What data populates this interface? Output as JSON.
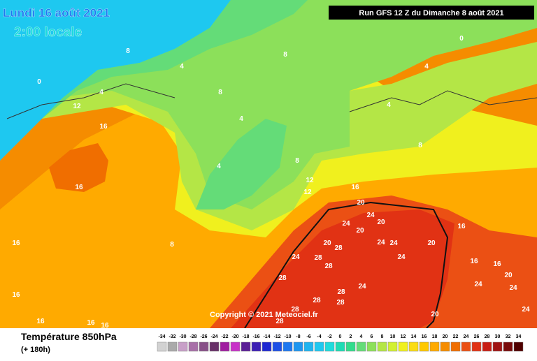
{
  "header": {
    "date": "Lundi 16 août 2021",
    "time": "2:00 locale",
    "run": "Run GFS 12 Z du Dimanche 8 août 2021"
  },
  "map": {
    "copyright": "Copyright © 2021 Meteociel.fr",
    "contour_labels": [
      "8",
      "4",
      "8",
      "0",
      "8",
      "4",
      "12",
      "16",
      "16",
      "4",
      "8",
      "12",
      "12",
      "16",
      "20",
      "24",
      "24",
      "20",
      "20",
      "20",
      "28",
      "24",
      "24",
      "20",
      "24",
      "28",
      "28",
      "24",
      "28",
      "24",
      "28",
      "28",
      "28",
      "28",
      "20",
      "28",
      "16",
      "16",
      "16",
      "20",
      "24",
      "24",
      "24",
      "16",
      "16",
      "16",
      "16",
      "16",
      "8",
      "4",
      "8",
      "4",
      "0",
      "4"
    ]
  },
  "legend": {
    "title": "Température 850hPa",
    "subtitle": "(+ 180h)",
    "scale": [
      {
        "value": -34,
        "color": "#d2d2d2"
      },
      {
        "value": -32,
        "color": "#aaaaaa"
      },
      {
        "value": -30,
        "color": "#c8a0c8"
      },
      {
        "value": -28,
        "color": "#a870a8"
      },
      {
        "value": -26,
        "color": "#885088"
      },
      {
        "value": -24,
        "color": "#683068"
      },
      {
        "value": -22,
        "color": "#a01ea0"
      },
      {
        "value": -20,
        "color": "#c832c8"
      },
      {
        "value": -18,
        "color": "#5a1e96"
      },
      {
        "value": -16,
        "color": "#3c1eb4"
      },
      {
        "value": -14,
        "color": "#1e28d2"
      },
      {
        "value": -12,
        "color": "#1e50e6"
      },
      {
        "value": -10,
        "color": "#1e78f0"
      },
      {
        "value": -8,
        "color": "#1e96f0"
      },
      {
        "value": -6,
        "color": "#1eb4f0"
      },
      {
        "value": -4,
        "color": "#1ec8f0"
      },
      {
        "value": -2,
        "color": "#1edcdc"
      },
      {
        "value": 0,
        "color": "#1edcb4"
      },
      {
        "value": 2,
        "color": "#32dc8c"
      },
      {
        "value": 4,
        "color": "#64dc78"
      },
      {
        "value": 6,
        "color": "#8ce05a"
      },
      {
        "value": 8,
        "color": "#b4e646"
      },
      {
        "value": 10,
        "color": "#d2f032"
      },
      {
        "value": 12,
        "color": "#f0f01e"
      },
      {
        "value": 14,
        "color": "#fadc14"
      },
      {
        "value": 16,
        "color": "#ffc800"
      },
      {
        "value": 18,
        "color": "#ffaa00"
      },
      {
        "value": 20,
        "color": "#f58c00"
      },
      {
        "value": 22,
        "color": "#f06e00"
      },
      {
        "value": 24,
        "color": "#eb5014"
      },
      {
        "value": 26,
        "color": "#e13214"
      },
      {
        "value": 28,
        "color": "#c81e14"
      },
      {
        "value": 30,
        "color": "#a01414"
      },
      {
        "value": 32,
        "color": "#780a0a"
      },
      {
        "value": 34,
        "color": "#500000"
      }
    ]
  }
}
